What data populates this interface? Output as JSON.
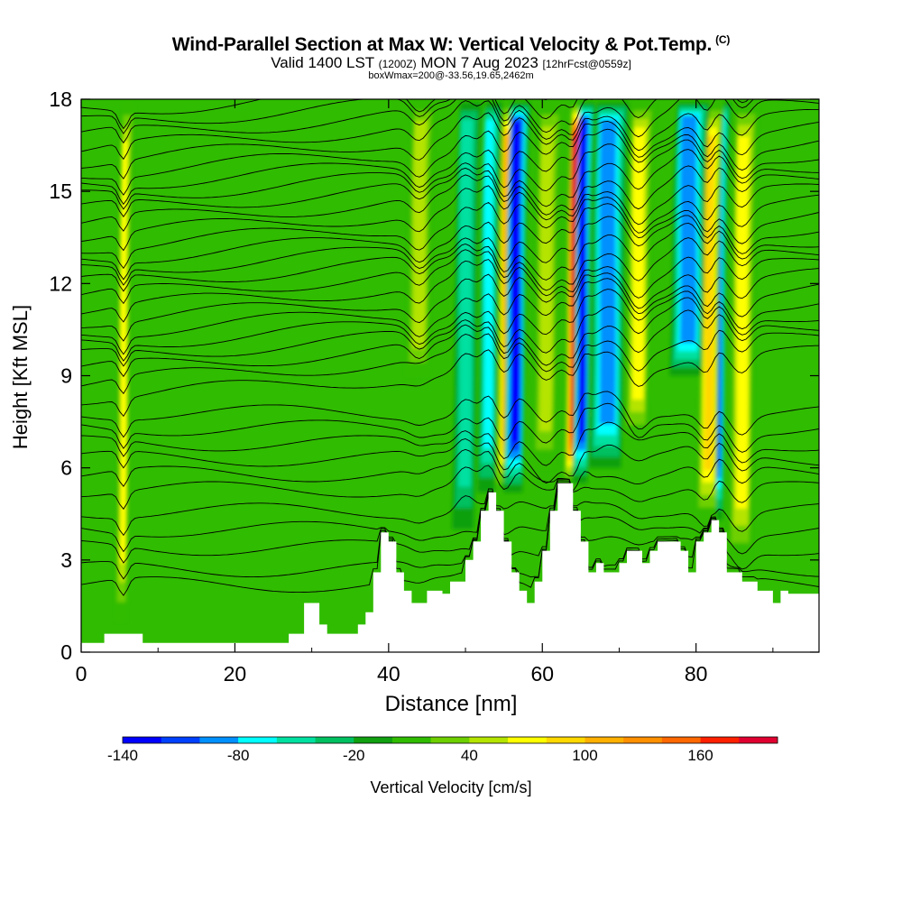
{
  "header": {
    "title": "Wind-Parallel Section at Max W: Vertical Velocity & Pot.Temp.",
    "copyright": "(C)",
    "valid_prefix": "Valid 1400 LST",
    "utc": "(1200Z)",
    "date": "MON 7 Aug 2023",
    "forecast": "[12hrFcst@0559z]",
    "box_info": "boxWmax=200@-33.56,19.65,2462m"
  },
  "chart_data": {
    "type": "heatmap",
    "xlabel": "Distance [nm]",
    "ylabel": "Height [Kft MSL]",
    "xlim": [
      0,
      96
    ],
    "ylim": [
      0,
      18
    ],
    "xticks": [
      "0",
      "20",
      "40",
      "60",
      "80"
    ],
    "xtick_values": [
      0,
      20,
      40,
      60,
      80
    ],
    "yticks": [
      "0",
      "3",
      "6",
      "9",
      "12",
      "15",
      "18"
    ],
    "ytick_values": [
      0,
      3,
      6,
      9,
      12,
      15,
      18
    ],
    "terrain_kft": [
      [
        0,
        0.3
      ],
      [
        3,
        0.3
      ],
      [
        3,
        0.6
      ],
      [
        8,
        0.6
      ],
      [
        8,
        0.3
      ],
      [
        27,
        0.3
      ],
      [
        27,
        0.6
      ],
      [
        29,
        0.6
      ],
      [
        29,
        1.6
      ],
      [
        31,
        1.6
      ],
      [
        31,
        0.9
      ],
      [
        32,
        0.9
      ],
      [
        32,
        0.6
      ],
      [
        36,
        0.6
      ],
      [
        36,
        0.9
      ],
      [
        37,
        0.9
      ],
      [
        37,
        1.3
      ],
      [
        38,
        1.3
      ],
      [
        38,
        2.6
      ],
      [
        39,
        2.6
      ],
      [
        39,
        3.9
      ],
      [
        40,
        3.9
      ],
      [
        40,
        3.6
      ],
      [
        41,
        3.6
      ],
      [
        41,
        2.6
      ],
      [
        42,
        2.6
      ],
      [
        42,
        2.0
      ],
      [
        43,
        2.0
      ],
      [
        43,
        1.6
      ],
      [
        45,
        1.6
      ],
      [
        45,
        2.0
      ],
      [
        47,
        2.0
      ],
      [
        47,
        1.9
      ],
      [
        48,
        1.9
      ],
      [
        48,
        2.3
      ],
      [
        50,
        2.3
      ],
      [
        50,
        3.0
      ],
      [
        51,
        3.0
      ],
      [
        51,
        3.6
      ],
      [
        52,
        3.6
      ],
      [
        52,
        4.6
      ],
      [
        53,
        4.6
      ],
      [
        53,
        5.2
      ],
      [
        54,
        5.2
      ],
      [
        54,
        4.6
      ],
      [
        55,
        4.6
      ],
      [
        55,
        3.6
      ],
      [
        56,
        3.6
      ],
      [
        56,
        2.6
      ],
      [
        57,
        2.6
      ],
      [
        57,
        2.0
      ],
      [
        58,
        2.0
      ],
      [
        58,
        1.6
      ],
      [
        59,
        1.6
      ],
      [
        59,
        2.3
      ],
      [
        60,
        2.3
      ],
      [
        60,
        3.3
      ],
      [
        61,
        3.3
      ],
      [
        61,
        4.6
      ],
      [
        62,
        4.6
      ],
      [
        62,
        5.5
      ],
      [
        64,
        5.5
      ],
      [
        64,
        4.6
      ],
      [
        65,
        4.6
      ],
      [
        65,
        3.6
      ],
      [
        66,
        3.6
      ],
      [
        66,
        2.6
      ],
      [
        67,
        2.6
      ],
      [
        67,
        2.9
      ],
      [
        68,
        2.9
      ],
      [
        68,
        2.6
      ],
      [
        70,
        2.6
      ],
      [
        70,
        2.9
      ],
      [
        71,
        2.9
      ],
      [
        71,
        3.3
      ],
      [
        73,
        3.3
      ],
      [
        73,
        2.9
      ],
      [
        74,
        2.9
      ],
      [
        74,
        3.3
      ],
      [
        75,
        3.3
      ],
      [
        75,
        3.6
      ],
      [
        78,
        3.6
      ],
      [
        78,
        3.3
      ],
      [
        79,
        3.3
      ],
      [
        79,
        2.6
      ],
      [
        80,
        2.6
      ],
      [
        80,
        3.6
      ],
      [
        81,
        3.6
      ],
      [
        81,
        3.9
      ],
      [
        82,
        3.9
      ],
      [
        82,
        4.3
      ],
      [
        83,
        4.3
      ],
      [
        83,
        3.9
      ],
      [
        84,
        3.9
      ],
      [
        84,
        2.6
      ],
      [
        86,
        2.6
      ],
      [
        86,
        2.3
      ],
      [
        88,
        2.3
      ],
      [
        88,
        2.0
      ],
      [
        90,
        2.0
      ],
      [
        90,
        1.6
      ],
      [
        91,
        1.6
      ],
      [
        91,
        2.0
      ],
      [
        92,
        2.0
      ],
      [
        92,
        1.9
      ],
      [
        96,
        1.9
      ]
    ],
    "theta_contour_heights_kft": [
      2.2,
      2.7,
      3.4,
      4.0,
      4.6,
      5.3,
      5.8,
      6.3,
      6.8,
      7.3,
      7.8,
      8.3,
      8.8,
      9.2,
      9.6,
      10.0,
      10.4,
      10.8,
      11.2,
      11.6,
      12.0,
      12.4,
      12.8,
      13.2,
      13.6,
      14.0,
      14.4,
      14.8,
      15.2,
      15.6,
      16.0,
      16.4,
      16.8,
      17.2,
      17.6
    ],
    "updraft_cores": [
      {
        "x_nm": 55.5,
        "sign": 1,
        "peak_cm_s": 100,
        "width_nm": 0.9,
        "bottom_kft": 5.2
      },
      {
        "x_nm": 56.5,
        "sign": -1,
        "peak_cm_s": -120,
        "width_nm": 0.9,
        "bottom_kft": 5.2
      },
      {
        "x_nm": 64.3,
        "sign": 1,
        "peak_cm_s": 180,
        "width_nm": 0.8,
        "bottom_kft": 5.5
      },
      {
        "x_nm": 65.2,
        "sign": -1,
        "peak_cm_s": -130,
        "width_nm": 0.7,
        "bottom_kft": 5.5
      },
      {
        "x_nm": 82.7,
        "sign": -1,
        "peak_cm_s": -100,
        "width_nm": 0.8,
        "bottom_kft": 4.3
      },
      {
        "x_nm": 81.7,
        "sign": 1,
        "peak_cm_s": 80,
        "width_nm": 0.9,
        "bottom_kft": 4.3
      },
      {
        "x_nm": 53.0,
        "sign": -1,
        "peak_cm_s": -70,
        "width_nm": 0.8,
        "bottom_kft": 5.2
      },
      {
        "x_nm": 68.5,
        "sign": -1,
        "peak_cm_s": -80,
        "width_nm": 1.5,
        "bottom_kft": 6.0
      },
      {
        "x_nm": 79.0,
        "sign": -1,
        "peak_cm_s": -80,
        "width_nm": 1.5,
        "bottom_kft": 9.0
      },
      {
        "x_nm": 60.5,
        "sign": 1,
        "peak_cm_s": 40,
        "width_nm": 1.0,
        "bottom_kft": 6.0
      },
      {
        "x_nm": 72.5,
        "sign": 1,
        "peak_cm_s": 60,
        "width_nm": 1.0,
        "bottom_kft": 7.0
      },
      {
        "x_nm": 86.0,
        "sign": 1,
        "peak_cm_s": 60,
        "width_nm": 1.0,
        "bottom_kft": 3.0
      },
      {
        "x_nm": 44.0,
        "sign": 1,
        "peak_cm_s": 40,
        "width_nm": 1.0,
        "bottom_kft": 9.0
      },
      {
        "x_nm": 50.0,
        "sign": -1,
        "peak_cm_s": -40,
        "width_nm": 1.0,
        "bottom_kft": 4.0
      },
      {
        "x_nm": 5.5,
        "sign": 1,
        "peak_cm_s": 60,
        "width_nm": 0.5,
        "bottom_kft": 1.0
      }
    ],
    "colorbar": {
      "label": "Vertical Velocity [cm/s]",
      "tick_labels": [
        "-140",
        "-80",
        "-20",
        "40",
        "100",
        "160"
      ],
      "tick_values": [
        -140,
        -80,
        -20,
        40,
        100,
        160
      ],
      "levels": [
        -140,
        -120,
        -100,
        -80,
        -60,
        -40,
        -20,
        0,
        20,
        40,
        60,
        80,
        100,
        120,
        140,
        160,
        180,
        200
      ],
      "colors": [
        "#0000ff",
        "#0040ff",
        "#0090ff",
        "#00ffff",
        "#00e0a0",
        "#00c060",
        "#10a010",
        "#30bc00",
        "#6ed000",
        "#b4e400",
        "#ffff00",
        "#ffd800",
        "#ffb000",
        "#ff9000",
        "#ff6800",
        "#ff2000",
        "#e00030"
      ]
    }
  }
}
